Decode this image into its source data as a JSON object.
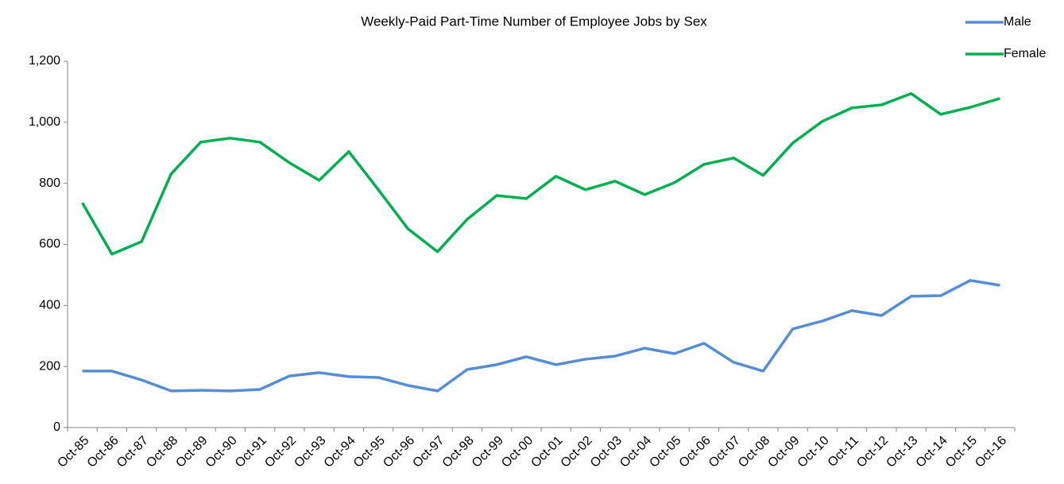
{
  "chart_data": {
    "type": "line",
    "title": "Weekly-Paid Part-Time Number of Employee Jobs by Sex",
    "categories": [
      "Oct-85",
      "Oct-86",
      "Oct-87",
      "Oct-88",
      "Oct-89",
      "Oct-90",
      "Oct-91",
      "Oct-92",
      "Oct-93",
      "Oct-94",
      "Oct-95",
      "Oct-96",
      "Oct-97",
      "Oct-98",
      "Oct-99",
      "Oct-00",
      "Oct-01",
      "Oct-02",
      "Oct-03",
      "Oct-04",
      "Oct-05",
      "Oct-06",
      "Oct-07",
      "Oct-08",
      "Oct-09",
      "Oct-10",
      "Oct-11",
      "Oct-12",
      "Oct-13",
      "Oct-14",
      "Oct-15",
      "Oct-16"
    ],
    "series": [
      {
        "name": "Male",
        "color": "#558ed5",
        "values": [
          185,
          185,
          156,
          120,
          122,
          120,
          125,
          169,
          180,
          167,
          164,
          138,
          120,
          190,
          206,
          232,
          206,
          224,
          234,
          260,
          242,
          276,
          214,
          185,
          323,
          349,
          383,
          367,
          430,
          432,
          482,
          466
        ]
      },
      {
        "name": "Female",
        "color": "#00b050",
        "values": [
          736,
          568,
          609,
          831,
          935,
          948,
          935,
          867,
          810,
          904,
          779,
          651,
          576,
          682,
          760,
          750,
          823,
          779,
          807,
          763,
          802,
          862,
          883,
          826,
          932,
          1003,
          1047,
          1057,
          1094,
          1026,
          1049,
          1078
        ]
      }
    ],
    "ylim": [
      0,
      1200
    ],
    "yticks": [
      0,
      200,
      400,
      600,
      800,
      {
        "value": 1000,
        "label": "1,000"
      },
      {
        "value": 1200,
        "label": "1,200"
      }
    ],
    "legend": "top-right"
  }
}
